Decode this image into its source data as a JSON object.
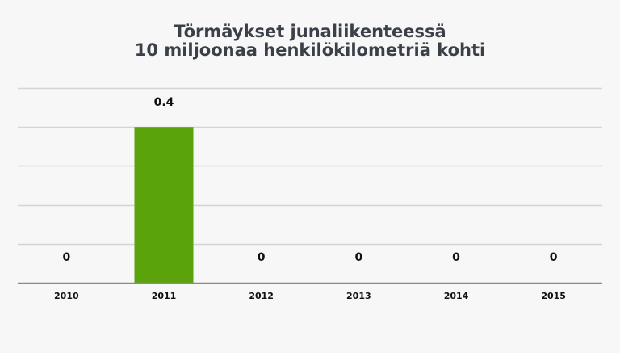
{
  "title": {
    "line1": "Törmäykset junaliikenteessä",
    "line2": "10 miljoonaa henkilökilometriä kohti"
  },
  "colors": {
    "bar": "#5aa30a",
    "grid": "#d4d4d4",
    "axis": "#8a8a80",
    "title": "#3a3f48",
    "label": "#111111",
    "background": "#f7f7f7"
  },
  "chart_data": {
    "type": "bar",
    "title": "Törmäykset junaliikenteessä 10 miljoonaa henkilökilometriä kohti",
    "categories": [
      "2010",
      "2011",
      "2012",
      "2013",
      "2014",
      "2015"
    ],
    "values": [
      0,
      0.4,
      0,
      0,
      0,
      0
    ],
    "data_labels": [
      "0",
      "0.4",
      "0",
      "0",
      "0",
      "0"
    ],
    "xlabel": "",
    "ylabel": "",
    "ylim": [
      0,
      0.5
    ],
    "grid": true,
    "legend": "none"
  }
}
